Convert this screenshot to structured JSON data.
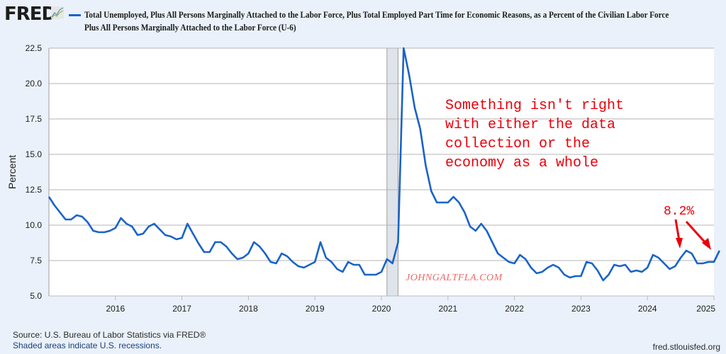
{
  "logo": {
    "text": "FRED",
    "icon": "chart-line-icon"
  },
  "legend": {
    "color": "#1a63c8"
  },
  "title_lines": [
    "Total Unemployed, Plus All Persons Marginally Attached to the Labor Force, Plus Total Employed Part Time for Economic Reasons, as a Percent of the Civilian Labor Force",
    "Plus All Persons Marginally Attached to the Labor Force (U-6)"
  ],
  "footer": {
    "source": "Source: U.S. Bureau of Labor Statistics via FRED®",
    "note": "Shaded areas indicate U.S. recessions.",
    "site": "fred.stlouisfed.org"
  },
  "annotations": {
    "comment_lines": [
      "Something isn't right",
      "with either the data",
      "collection or the",
      "economy as a whole"
    ],
    "value_label": "8.2%",
    "watermark": "JOHNGALTFLA.COM"
  },
  "chart_data": {
    "type": "line",
    "title": "Total Unemployed, Plus All Persons Marginally Attached to the Labor Force, Plus Total Employed Part Time for Economic Reasons, as a Percent of the Civilian Labor Force Plus All Persons Marginally Attached to the Labor Force (U-6)",
    "xlabel": "",
    "ylabel": "Percent",
    "ylim": [
      5.0,
      22.5
    ],
    "xlim": [
      "2015-01",
      "2025-01"
    ],
    "yticks": [
      "5.0",
      "7.5",
      "10.0",
      "12.5",
      "15.0",
      "17.5",
      "20.0",
      "22.5"
    ],
    "xticks": [
      "2016",
      "2017",
      "2018",
      "2019",
      "2020",
      "2021",
      "2022",
      "2023",
      "2024",
      "2025"
    ],
    "grid": true,
    "legend": "top-left",
    "recessions": [
      {
        "start": "2020-02",
        "end": "2020-04"
      }
    ],
    "series": [
      {
        "name": "U-6",
        "color": "#1a63c8",
        "start": "2015-01",
        "frequency": "monthly",
        "values": [
          12.0,
          11.4,
          10.9,
          10.4,
          10.4,
          10.7,
          10.6,
          10.2,
          9.6,
          9.5,
          9.5,
          9.6,
          9.8,
          10.5,
          10.1,
          9.9,
          9.3,
          9.4,
          9.9,
          10.1,
          9.7,
          9.3,
          9.2,
          9.0,
          9.1,
          10.1,
          9.4,
          8.7,
          8.1,
          8.1,
          8.8,
          8.8,
          8.5,
          8.0,
          7.6,
          7.7,
          8.0,
          8.8,
          8.5,
          8.0,
          7.4,
          7.3,
          8.0,
          7.8,
          7.4,
          7.1,
          7.0,
          7.2,
          7.4,
          8.8,
          7.7,
          7.4,
          6.9,
          6.7,
          7.4,
          7.2,
          7.2,
          6.5,
          6.5,
          6.5,
          6.7,
          7.6,
          7.3,
          8.8,
          22.5,
          20.6,
          18.3,
          16.8,
          14.2,
          12.4,
          11.6,
          11.6,
          11.6,
          12.0,
          11.6,
          10.9,
          9.9,
          9.6,
          10.1,
          9.6,
          8.8,
          8.0,
          7.7,
          7.4,
          7.3,
          7.9,
          7.6,
          7.0,
          6.6,
          6.7,
          7.0,
          7.2,
          7.0,
          6.5,
          6.3,
          6.4,
          6.4,
          7.4,
          7.3,
          6.8,
          6.1,
          6.5,
          7.2,
          7.1,
          7.2,
          6.7,
          6.8,
          6.7,
          7.0,
          7.9,
          7.7,
          7.3,
          6.9,
          7.1,
          7.7,
          8.2,
          8.0,
          7.3,
          7.3,
          7.4,
          7.4,
          8.2
        ]
      }
    ],
    "annotations": [
      {
        "text": "8.2%",
        "points_to": [
          "2024-07",
          "2025-01"
        ]
      },
      {
        "text": "Something isn't right with either the data collection or the economy as a whole"
      },
      {
        "text": "JOHNGALTFLA.COM",
        "type": "watermark"
      }
    ]
  }
}
